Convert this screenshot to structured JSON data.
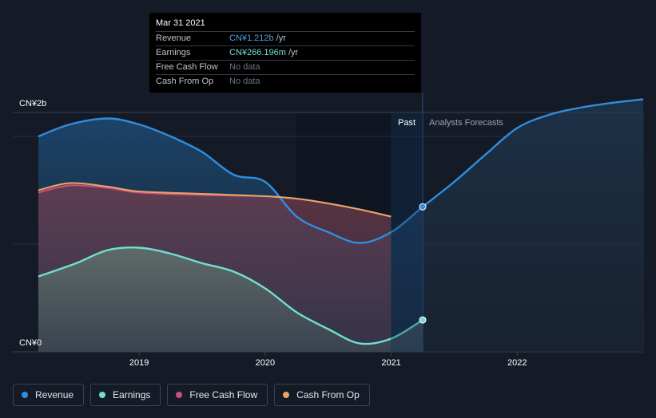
{
  "chart_data": {
    "type": "area",
    "y_max_label": "CN¥2b",
    "y_min_label": "CN¥0",
    "ylim": [
      0,
      2.0
    ],
    "xlim": [
      2018.2,
      2023.0
    ],
    "x_ticks": [
      {
        "value": 2019.0,
        "label": "2019"
      },
      {
        "value": 2020.0,
        "label": "2020"
      },
      {
        "value": 2021.0,
        "label": "2021"
      },
      {
        "value": 2022.0,
        "label": "2022"
      }
    ],
    "past_label": "Past",
    "forecast_label": "Analysts Forecasts",
    "highlight_start": 2020.25,
    "divider_x": 2021.25,
    "series": [
      {
        "name": "Revenue",
        "color": "#2f8ee0",
        "past": [
          [
            2018.2,
            1.8
          ],
          [
            2018.45,
            1.9
          ],
          [
            2018.75,
            1.95
          ],
          [
            2019.0,
            1.9
          ],
          [
            2019.25,
            1.8
          ],
          [
            2019.5,
            1.67
          ],
          [
            2019.75,
            1.48
          ],
          [
            2020.0,
            1.42
          ],
          [
            2020.25,
            1.13
          ],
          [
            2020.5,
            1.0
          ],
          [
            2020.75,
            0.91
          ],
          [
            2021.0,
            1.0
          ],
          [
            2021.25,
            1.212
          ]
        ],
        "forecast": [
          [
            2021.25,
            1.212
          ],
          [
            2021.5,
            1.42
          ],
          [
            2021.75,
            1.65
          ],
          [
            2022.0,
            1.87
          ],
          [
            2022.25,
            1.98
          ],
          [
            2022.5,
            2.04
          ],
          [
            2022.75,
            2.08
          ],
          [
            2023.0,
            2.11
          ]
        ]
      },
      {
        "name": "Earnings",
        "color": "#6fe0cf",
        "past": [
          [
            2018.2,
            0.63
          ],
          [
            2018.5,
            0.74
          ],
          [
            2018.75,
            0.85
          ],
          [
            2019.0,
            0.87
          ],
          [
            2019.25,
            0.82
          ],
          [
            2019.5,
            0.74
          ],
          [
            2019.75,
            0.67
          ],
          [
            2020.0,
            0.53
          ],
          [
            2020.25,
            0.33
          ],
          [
            2020.5,
            0.19
          ],
          [
            2020.75,
            0.07
          ],
          [
            2021.0,
            0.11
          ],
          [
            2021.25,
            0.266
          ]
        ],
        "forecast": []
      },
      {
        "name": "Free Cash Flow",
        "color": "#c94f7c",
        "past": [
          [
            2018.2,
            1.33
          ],
          [
            2018.45,
            1.39
          ],
          [
            2018.75,
            1.37
          ],
          [
            2019.0,
            1.33
          ],
          [
            2019.5,
            1.31
          ],
          [
            2020.0,
            1.3
          ],
          [
            2020.25,
            1.28
          ],
          [
            2020.5,
            1.24
          ],
          [
            2020.75,
            1.19
          ],
          [
            2021.0,
            1.13
          ]
        ],
        "forecast": []
      },
      {
        "name": "Cash From Op",
        "color": "#e8a765",
        "past": [
          [
            2018.2,
            1.35
          ],
          [
            2018.45,
            1.41
          ],
          [
            2018.75,
            1.38
          ],
          [
            2019.0,
            1.34
          ],
          [
            2019.5,
            1.32
          ],
          [
            2020.0,
            1.3
          ],
          [
            2020.25,
            1.28
          ],
          [
            2020.5,
            1.24
          ],
          [
            2020.75,
            1.19
          ],
          [
            2021.0,
            1.13
          ]
        ],
        "forecast": []
      }
    ],
    "highlight_points": [
      {
        "series": "Revenue",
        "x": 2021.25,
        "y": 1.212
      },
      {
        "series": "Earnings",
        "x": 2021.25,
        "y": 0.266
      }
    ],
    "grid": true,
    "legend_position": "bottom-left"
  },
  "tooltip": {
    "date": "Mar 31 2021",
    "rows": [
      {
        "label": "Revenue",
        "value": "CN¥1.212b",
        "unit": "/yr"
      },
      {
        "label": "Earnings",
        "value": "CN¥266.196m",
        "unit": "/yr"
      },
      {
        "label": "Free Cash Flow",
        "value": "No data",
        "unit": ""
      },
      {
        "label": "Cash From Op",
        "value": "No data",
        "unit": ""
      }
    ]
  },
  "legend": [
    {
      "label": "Revenue",
      "color": "#2f8ee0"
    },
    {
      "label": "Earnings",
      "color": "#6fe0cf"
    },
    {
      "label": "Free Cash Flow",
      "color": "#c94f7c"
    },
    {
      "label": "Cash From Op",
      "color": "#e8a765"
    }
  ]
}
